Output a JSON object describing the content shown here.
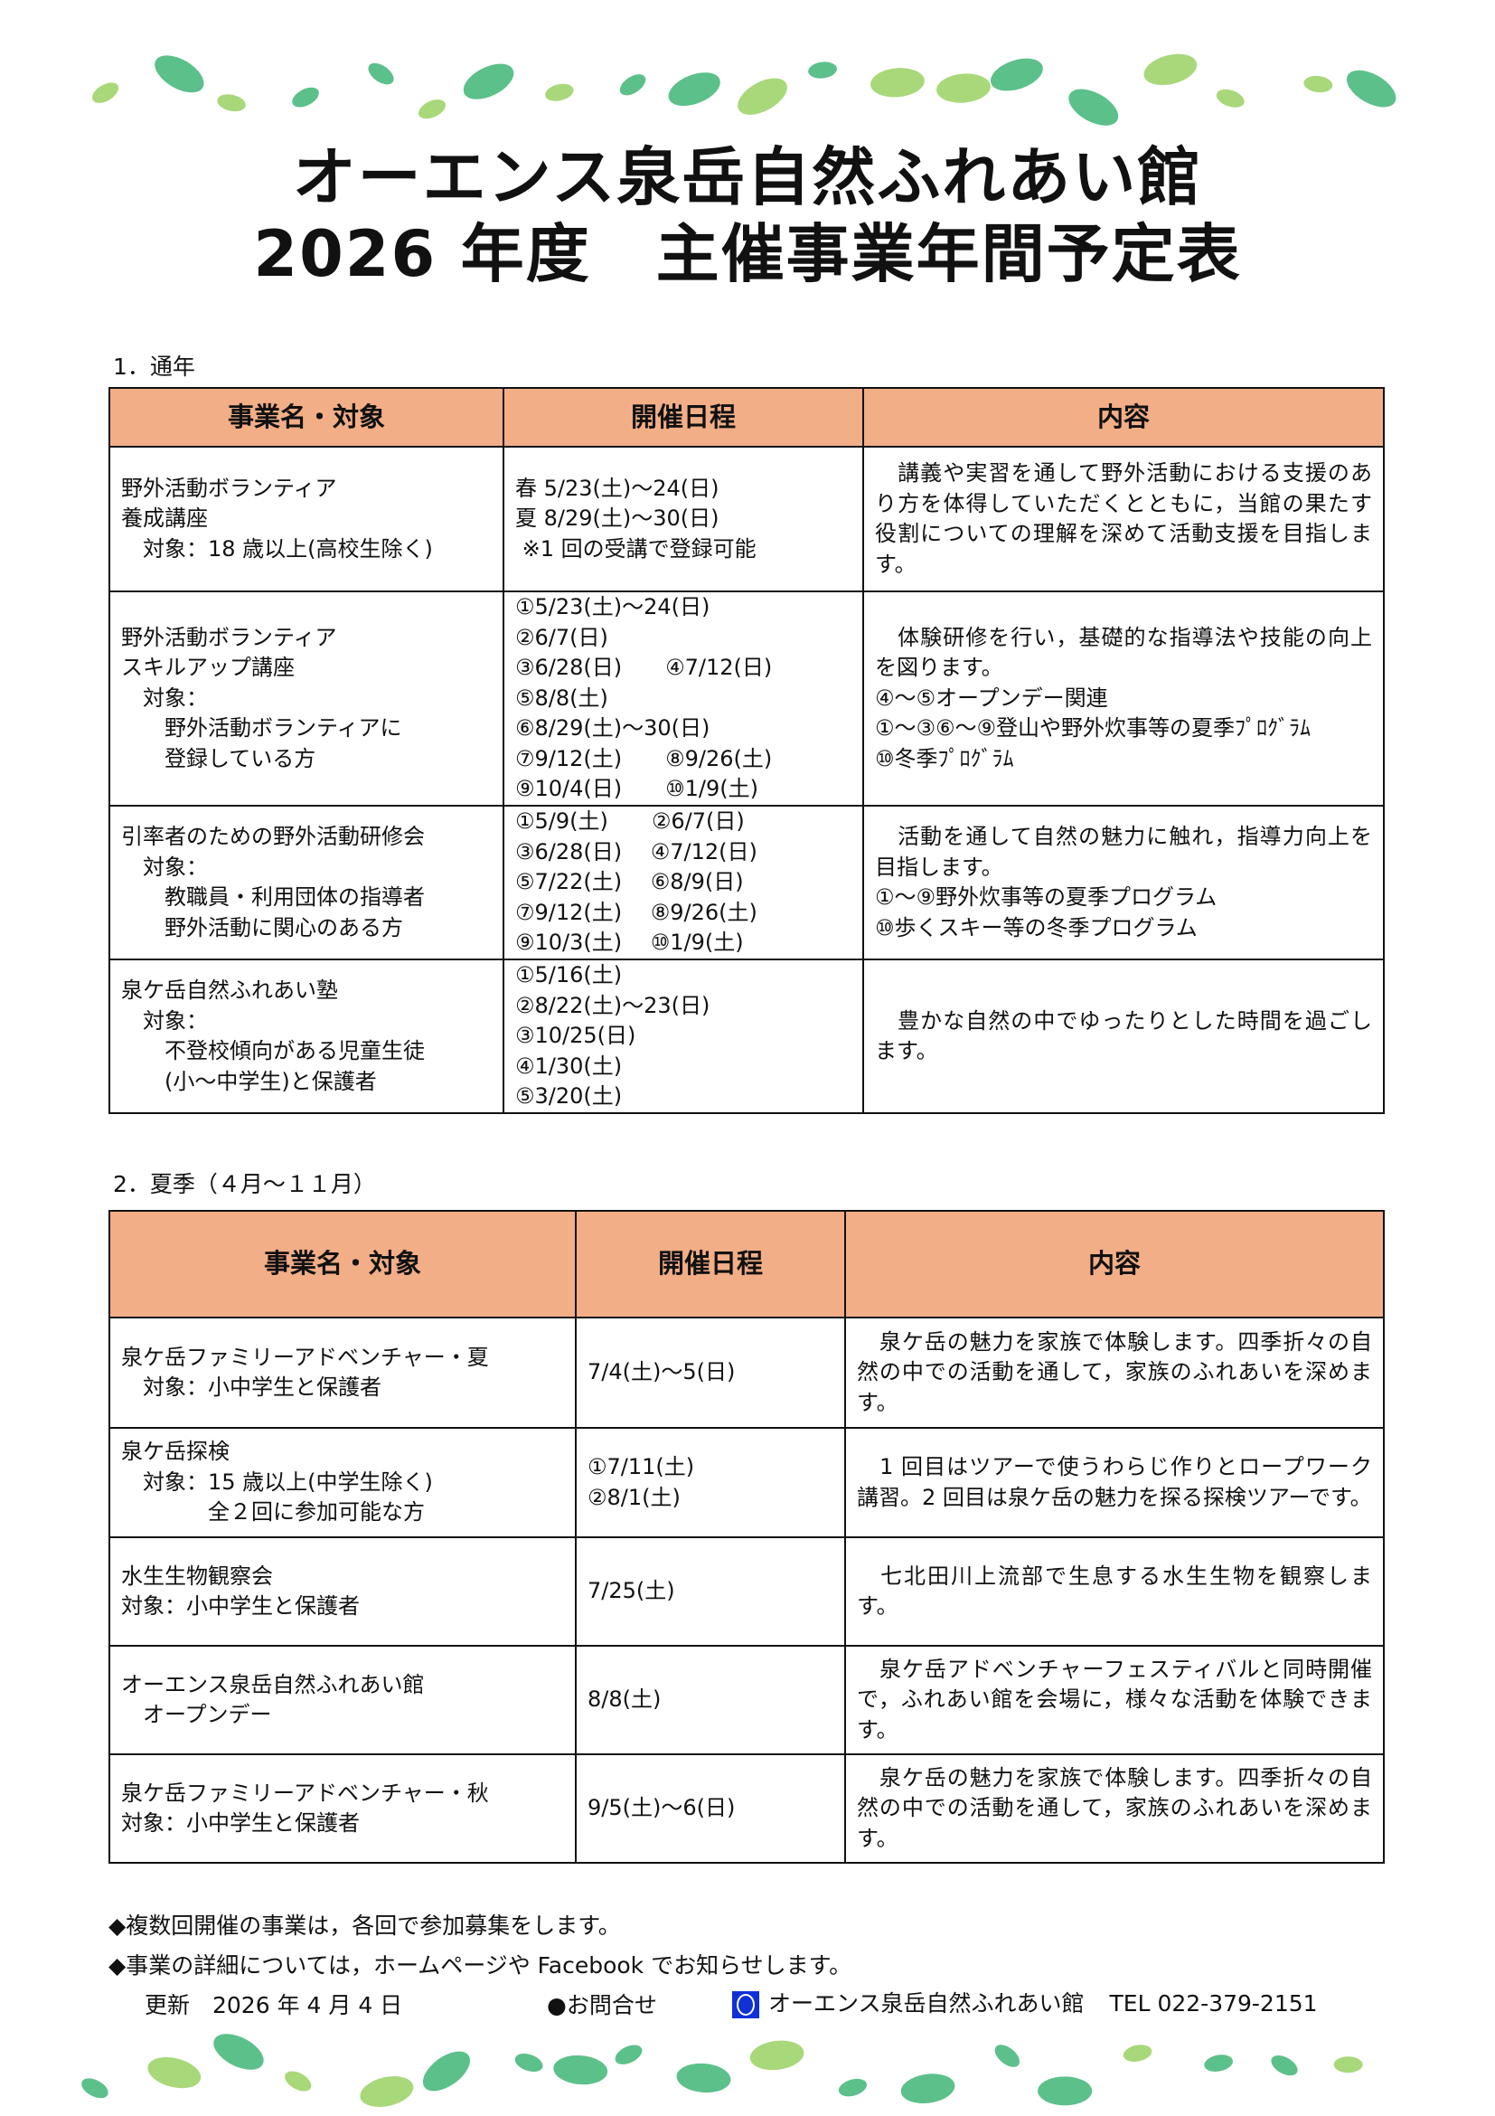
{
  "title": {
    "line1": "オーエンス泉岳自然ふれあい館",
    "line2": "2026 年度　主催事業年間予定表"
  },
  "colors": {
    "header_bg": "#f2ae86",
    "leaf_dark": "#5cc08a",
    "leaf_light": "#a8d87a",
    "logo_blue": "#1030d8"
  },
  "section1": {
    "heading": "1．通年",
    "headers": [
      "事業名・対象",
      "開催日程",
      "内容"
    ],
    "rows": [
      {
        "name": "野外活動ボランティア\n養成講座\n　対象：18 歳以上(高校生除く)",
        "dates": "春 5/23(土)～24(日)\n夏 8/29(土)～30(日)\n ※1 回の受講で登録可能",
        "content": "　講義や実習を通して野外活動における支援のあり方を体得していただくとともに，当館の果たす役割についての理解を深めて活動支援を目指します。"
      },
      {
        "name": "野外活動ボランティア\nスキルアップ講座\n　対象：\n　　野外活動ボランティアに\n　　登録している方",
        "dates": "①5/23(土)～24(日)\n②6/7(日)\n③6/28(日)　　④7/12(日)\n⑤8/8(土)\n⑥8/29(土)～30(日)\n⑦9/12(土)　　⑧9/26(土)\n⑨10/4(日)　　⑩1/9(土)",
        "content": "　体験研修を行い，基礎的な指導法や技能の向上を図ります。\n④～⑤オープンデー関連\n①～③⑥～⑨登山や野外炊事等の夏季ﾌﾟﾛｸﾞﾗﾑ\n⑩冬季ﾌﾟﾛｸﾞﾗﾑ"
      },
      {
        "name": "引率者のための野外活動研修会\n　対象：\n　　教職員・利用団体の指導者\n　　野外活動に関心のある方",
        "dates": "①5/9(土)　　②6/7(日)\n③6/28(日)　 ④7/12(日)\n⑤7/22(土)　 ⑥8/9(日)\n⑦9/12(土)　 ⑧9/26(土)\n⑨10/3(土)　 ⑩1/9(土)",
        "content": "　活動を通して自然の魅力に触れ，指導力向上を目指します。\n①～⑨野外炊事等の夏季プログラム\n⑩歩くスキー等の冬季プログラム"
      },
      {
        "name": "泉ケ岳自然ふれあい塾\n　対象：\n　　不登校傾向がある児童生徒\n　　(小～中学生)と保護者",
        "dates": "①5/16(土)\n②8/22(土)～23(日)\n③10/25(日)\n④1/30(土)\n⑤3/20(土)",
        "content": "　豊かな自然の中でゆったりとした時間を過ごします。"
      }
    ]
  },
  "section2": {
    "heading": "2．夏季（４月～１１月）",
    "headers": [
      "事業名・対象",
      "開催日程",
      "内容"
    ],
    "rows": [
      {
        "name": "泉ケ岳ファミリーアドベンチャー・夏\n　対象：小中学生と保護者",
        "dates": "7/4(土)～5(日)",
        "content": "　泉ケ岳の魅力を家族で体験します。四季折々の自然の中での活動を通して，家族のふれあいを深めます。"
      },
      {
        "name": "泉ケ岳探検\n　対象：15 歳以上(中学生除く)\n　　　　全２回に参加可能な方",
        "dates": "①7/11(土)\n②8/1(土)",
        "content": "　1 回目はツアーで使うわらじ作りとロープワーク講習。2 回目は泉ケ岳の魅力を探る探検ツアーです。"
      },
      {
        "name": "水生生物観察会\n対象：小中学生と保護者",
        "dates": "7/25(土)",
        "content": "　七北田川上流部で生息する水生生物を観察します。"
      },
      {
        "name": "オーエンス泉岳自然ふれあい館\n　オープンデー",
        "dates": "8/8(土)",
        "content": "　泉ケ岳アドベンチャーフェスティバルと同時開催で，ふれあい館を会場に，様々な活動を体験できます。"
      },
      {
        "name": "泉ケ岳ファミリーアドベンチャー・秋\n対象：小中学生と保護者",
        "dates": "9/5(土)～6(日)",
        "content": "　泉ケ岳の魅力を家族で体験します。四季折々の自然の中での活動を通して，家族のふれあいを深めます。"
      }
    ]
  },
  "notes": [
    "◆複数回開催の事業は，各回で参加募集をします。",
    "◆事業の詳細については，ホームページや Facebook でお知らせします。"
  ],
  "footer": {
    "updated": "更新　2026 年 4 月 4 日",
    "contact_label": "●お問合せ",
    "org": "オーエンス泉岳自然ふれあい館",
    "tel": "TEL 022-379-2151"
  }
}
